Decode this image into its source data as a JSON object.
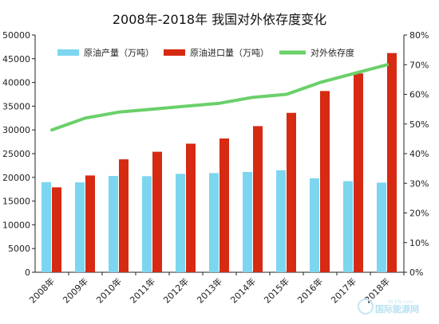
{
  "chart_data": {
    "type": "bar",
    "title": "2008年-2018年 我国对外依存度变化",
    "categories": [
      "2008年",
      "2009年",
      "2010年",
      "2011年",
      "2012年",
      "2013年",
      "2014年",
      "2015年",
      "2016年",
      "2017年",
      "2018年"
    ],
    "series": [
      {
        "name": "原油产量（万吨）",
        "type": "bar",
        "axis": "left",
        "color": "#7dd6ef",
        "values": [
          19000,
          18950,
          20300,
          20250,
          20750,
          20900,
          21150,
          21500,
          19800,
          19200,
          18900
        ]
      },
      {
        "name": "原油进口量（万吨）",
        "type": "bar",
        "axis": "left",
        "color": "#d62a13",
        "values": [
          17900,
          20400,
          23800,
          25400,
          27100,
          28200,
          30800,
          33600,
          38200,
          41900,
          46200
        ]
      },
      {
        "name": "对外依存度",
        "type": "line",
        "axis": "right",
        "color": "#6ad06a",
        "values": [
          0.48,
          0.52,
          0.54,
          0.55,
          0.56,
          0.57,
          0.59,
          0.6,
          0.64,
          0.67,
          0.7
        ]
      }
    ],
    "y_left": {
      "min": 0,
      "max": 50000,
      "ticks": [
        0,
        5000,
        10000,
        15000,
        20000,
        25000,
        30000,
        35000,
        40000,
        45000,
        50000
      ]
    },
    "y_right": {
      "min": 0,
      "max": 0.8,
      "ticks": [
        "0%",
        "10%",
        "20%",
        "30%",
        "40%",
        "50%",
        "60%",
        "70%",
        "80%"
      ]
    },
    "grid": false,
    "legend_position": "top"
  },
  "watermark": {
    "text": "国际能源网",
    "sub": "IN-EN.com"
  }
}
